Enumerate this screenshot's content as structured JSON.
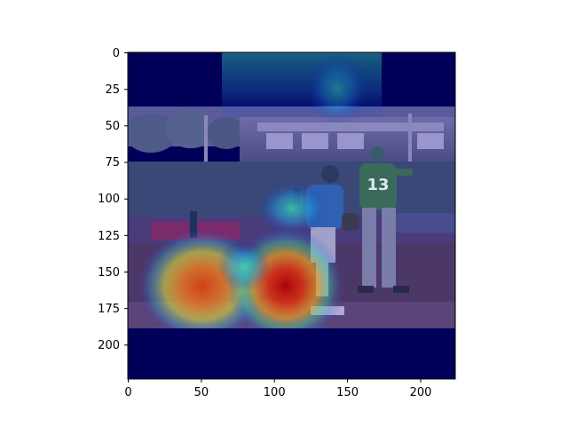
{
  "figure": {
    "x_ticks": [
      "0",
      "50",
      "100",
      "150",
      "200"
    ],
    "y_ticks": [
      "0",
      "25",
      "50",
      "75",
      "100",
      "125",
      "150",
      "175",
      "200"
    ],
    "x_range": [
      0,
      224
    ],
    "y_range": [
      0,
      224
    ],
    "y_inverted": true,
    "grid": false,
    "colormap": "jet",
    "background_color": "#ffffff",
    "axis_color": "#000000"
  },
  "image": {
    "description_tags": [
      "baseball-field",
      "fielder-13",
      "batter-runner",
      "stadium-seating",
      "outfield-wall",
      "heatmap-overlay"
    ],
    "player_number": "13",
    "colors": {
      "overlay_base": "#00005a",
      "field": "#3c2f5c",
      "grass": "#2c3e66",
      "heat_hot": "#cc1a10",
      "heat_warm": "#f0c020",
      "heat_mid": "#30d0a0"
    }
  }
}
